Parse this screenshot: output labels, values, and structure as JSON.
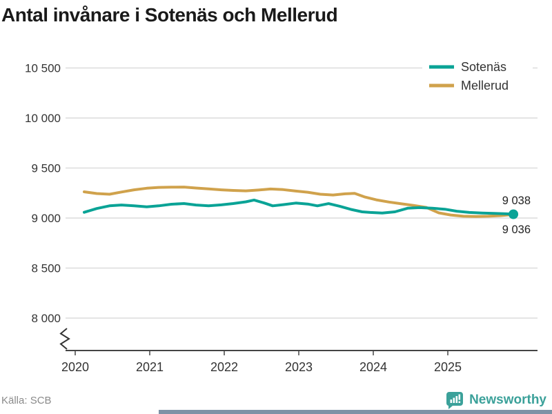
{
  "title": "Antal invånare i Sotenäs och Mellerud",
  "footer": {
    "source": "Källa: SCB",
    "brand": "Newsworthy"
  },
  "colors": {
    "mellerud": "#d0a24c",
    "sotenas": "#0aa396",
    "brand": "#3ba19a",
    "grid": "#dcdcdc",
    "axis": "#444444",
    "tick_text": "#333333",
    "title_text": "#1a1a1a",
    "muted_text": "#8a8a8a",
    "value_label": "#222222",
    "bottom_bar": "#7d92a6"
  },
  "chart_data": {
    "type": "line",
    "title": "Antal invånare i Sotenäs och Mellerud",
    "xlabel": "",
    "ylabel": "",
    "grid": "horizontal",
    "axis_break": true,
    "legend_position": "top-right",
    "x_ticks": [
      2020,
      2021,
      2022,
      2023,
      2024,
      2025
    ],
    "y_ticks": [
      {
        "value": 10500,
        "label": "10 500"
      },
      {
        "value": 10000,
        "label": "10 000"
      },
      {
        "value": 9500,
        "label": "9 500"
      },
      {
        "value": 9000,
        "label": "9 000"
      },
      {
        "value": 8500,
        "label": "8 500"
      },
      {
        "value": 8000,
        "label": "8 000"
      }
    ],
    "series": [
      {
        "name": "Mellerud",
        "color": "#d0a24c",
        "end_value": 9036,
        "end_label": "9 036",
        "end_dot": false,
        "points": [
          [
            2020.12,
            9262
          ],
          [
            2020.29,
            9245
          ],
          [
            2020.46,
            9238
          ],
          [
            2020.62,
            9260
          ],
          [
            2020.79,
            9282
          ],
          [
            2020.96,
            9298
          ],
          [
            2021.12,
            9306
          ],
          [
            2021.29,
            9308
          ],
          [
            2021.46,
            9310
          ],
          [
            2021.62,
            9300
          ],
          [
            2021.79,
            9291
          ],
          [
            2021.96,
            9282
          ],
          [
            2022.12,
            9276
          ],
          [
            2022.29,
            9272
          ],
          [
            2022.46,
            9280
          ],
          [
            2022.62,
            9290
          ],
          [
            2022.79,
            9284
          ],
          [
            2022.96,
            9270
          ],
          [
            2023.12,
            9258
          ],
          [
            2023.29,
            9238
          ],
          [
            2023.46,
            9230
          ],
          [
            2023.62,
            9242
          ],
          [
            2023.75,
            9246
          ],
          [
            2023.88,
            9212
          ],
          [
            2024.04,
            9182
          ],
          [
            2024.21,
            9160
          ],
          [
            2024.38,
            9142
          ],
          [
            2024.54,
            9126
          ],
          [
            2024.71,
            9106
          ],
          [
            2024.88,
            9052
          ],
          [
            2025.04,
            9030
          ],
          [
            2025.21,
            9018
          ],
          [
            2025.38,
            9016
          ],
          [
            2025.54,
            9018
          ],
          [
            2025.71,
            9024
          ],
          [
            2025.88,
            9036
          ]
        ]
      },
      {
        "name": "Sotenäs",
        "color": "#0aa396",
        "end_value": 9038,
        "end_label": "9 038",
        "end_dot": true,
        "points": [
          [
            2020.12,
            9057
          ],
          [
            2020.29,
            9095
          ],
          [
            2020.46,
            9122
          ],
          [
            2020.62,
            9130
          ],
          [
            2020.79,
            9122
          ],
          [
            2020.96,
            9112
          ],
          [
            2021.12,
            9122
          ],
          [
            2021.29,
            9138
          ],
          [
            2021.46,
            9145
          ],
          [
            2021.62,
            9130
          ],
          [
            2021.79,
            9122
          ],
          [
            2021.96,
            9132
          ],
          [
            2022.12,
            9145
          ],
          [
            2022.29,
            9162
          ],
          [
            2022.4,
            9180
          ],
          [
            2022.54,
            9150
          ],
          [
            2022.65,
            9122
          ],
          [
            2022.79,
            9134
          ],
          [
            2022.96,
            9150
          ],
          [
            2023.12,
            9140
          ],
          [
            2023.25,
            9122
          ],
          [
            2023.4,
            9144
          ],
          [
            2023.55,
            9118
          ],
          [
            2023.7,
            9086
          ],
          [
            2023.85,
            9062
          ],
          [
            2023.96,
            9056
          ],
          [
            2024.12,
            9050
          ],
          [
            2024.29,
            9062
          ],
          [
            2024.46,
            9098
          ],
          [
            2024.62,
            9104
          ],
          [
            2024.79,
            9098
          ],
          [
            2024.96,
            9088
          ],
          [
            2025.12,
            9068
          ],
          [
            2025.29,
            9056
          ],
          [
            2025.46,
            9050
          ],
          [
            2025.62,
            9046
          ],
          [
            2025.79,
            9042
          ],
          [
            2025.88,
            9038
          ]
        ]
      }
    ]
  }
}
